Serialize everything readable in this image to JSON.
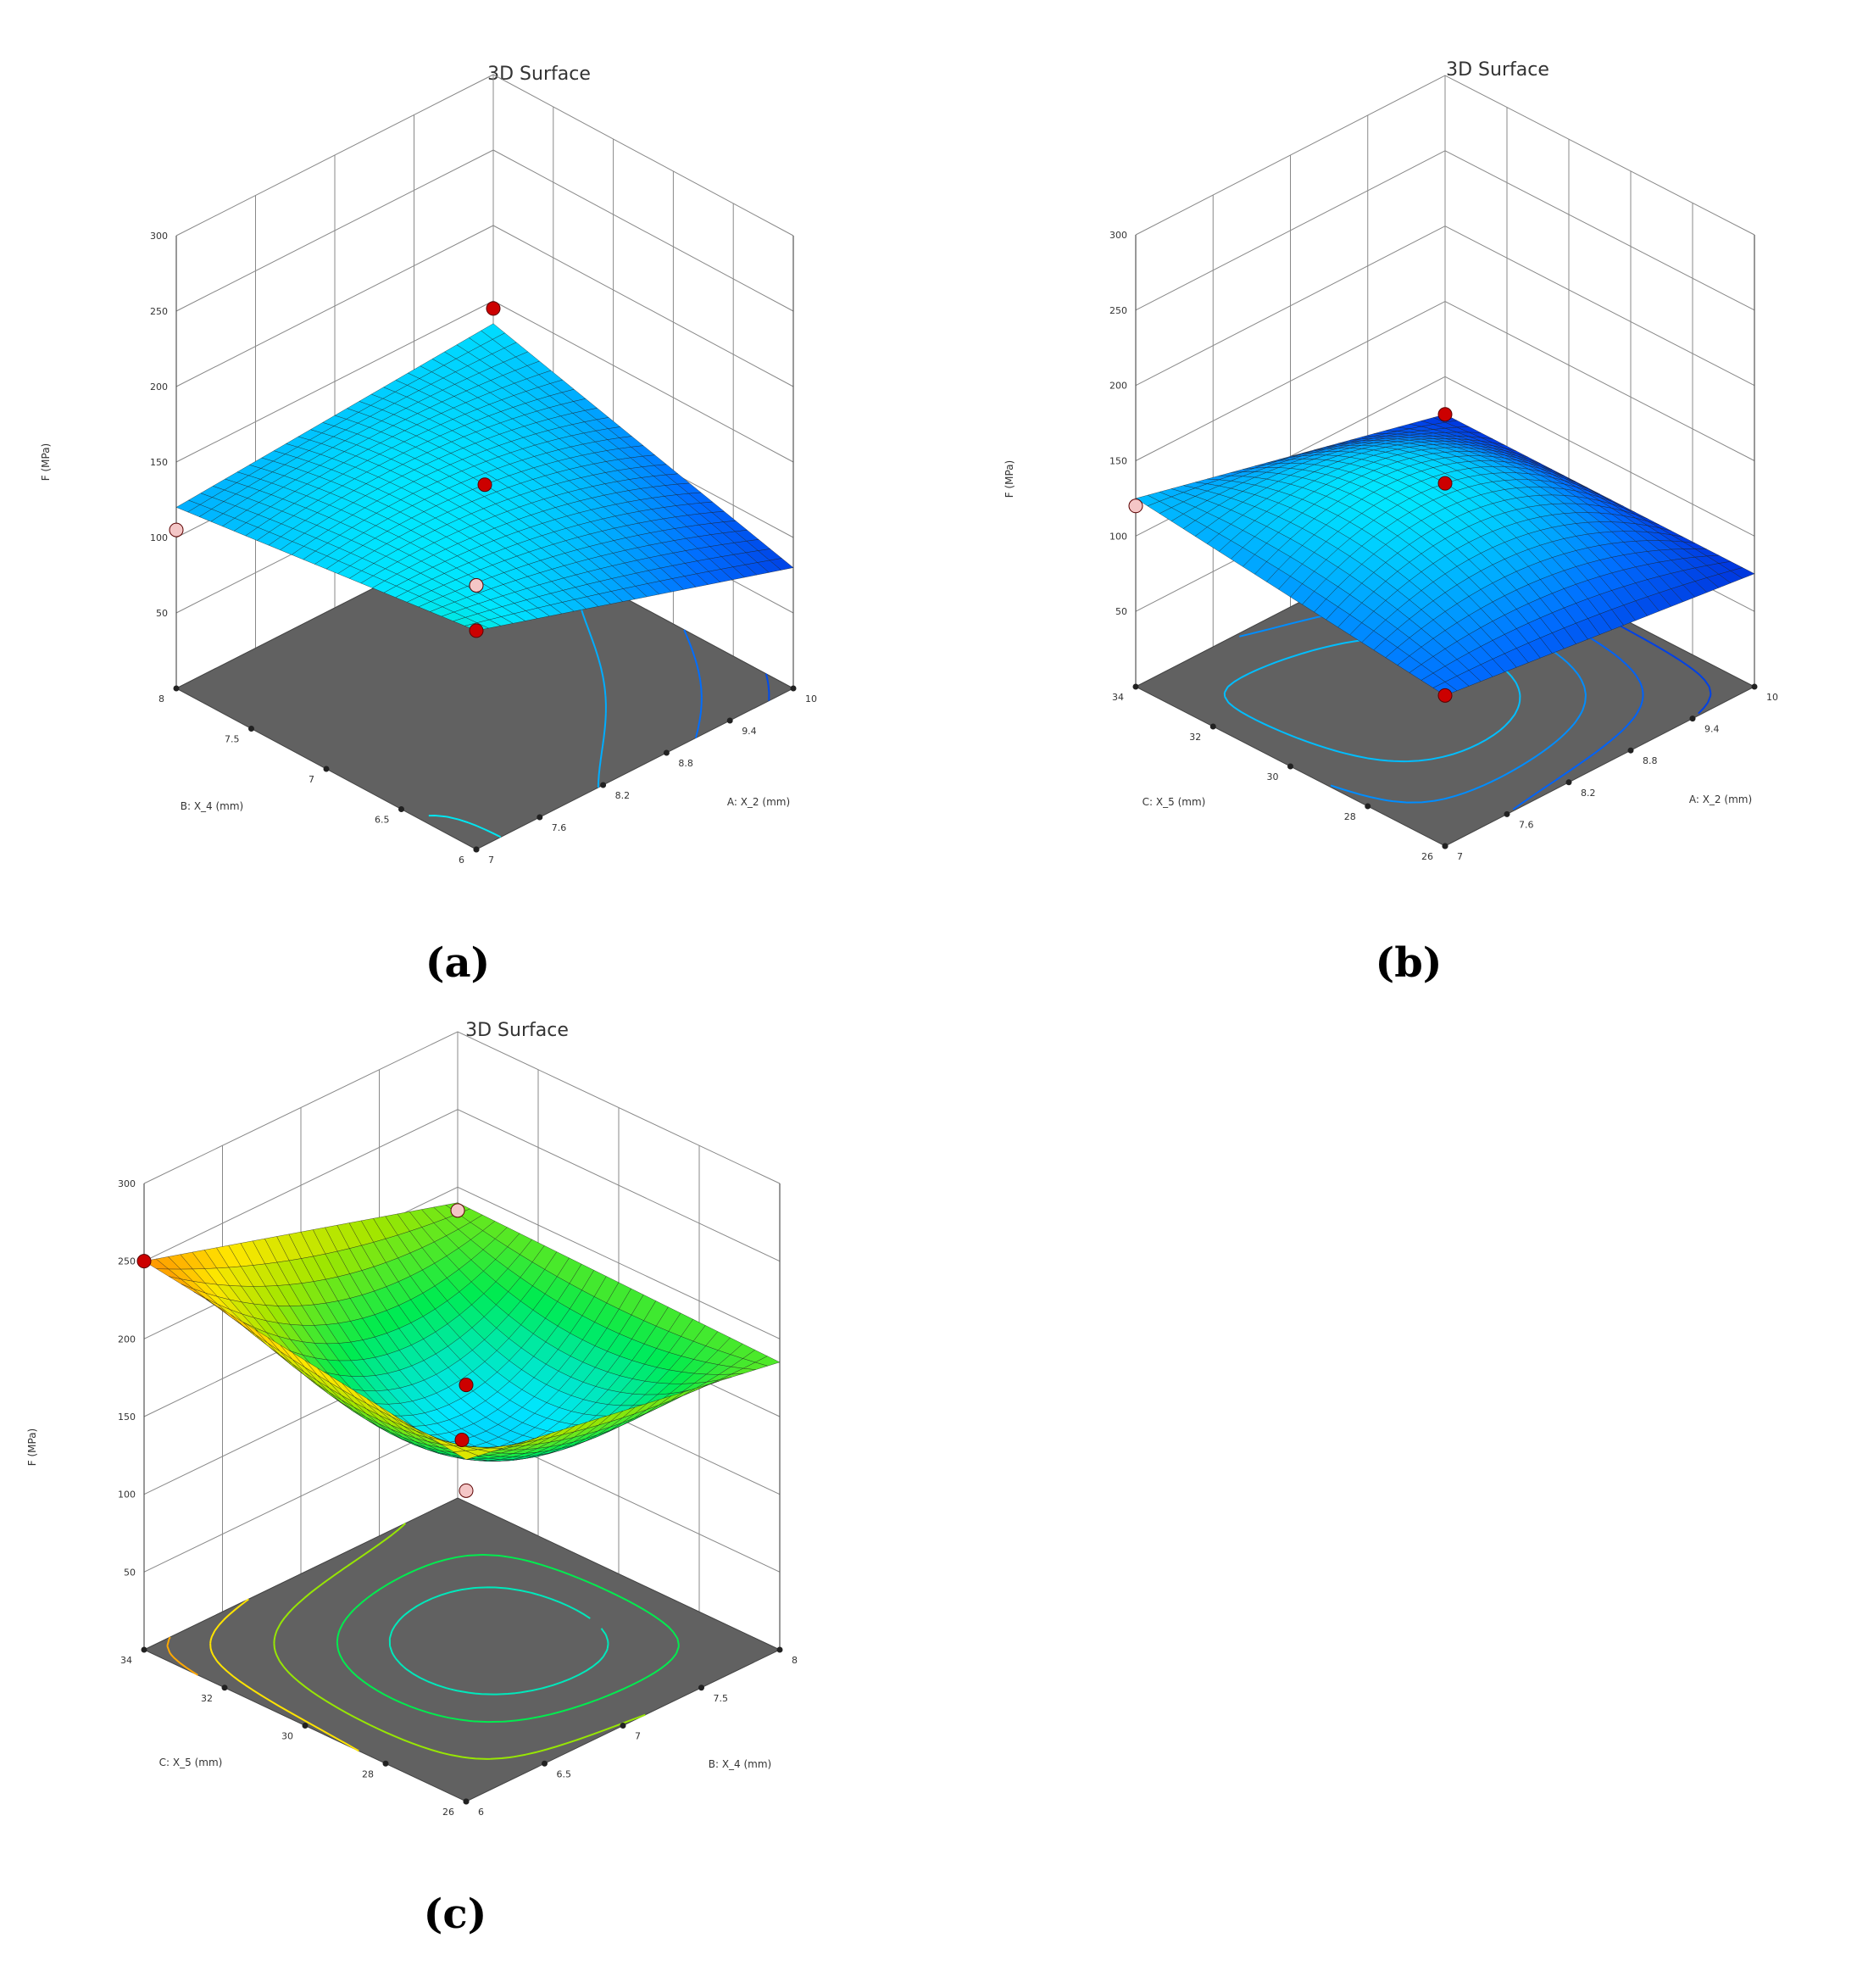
{
  "captions": [
    "(a)",
    "(b)",
    "(c)"
  ],
  "chart_data": [
    {
      "type": "surface3d",
      "title": "3D Surface",
      "zlabel": "F (MPa)",
      "xlabel": "A: X_2 (mm)",
      "ylabel": "B: X_4 (mm)",
      "xrange": [
        7,
        10
      ],
      "yrange": [
        6,
        8
      ],
      "zrange": [
        0,
        300
      ],
      "xticks": [
        "7",
        "7.6",
        "8.2",
        "8.8",
        "9.4",
        "10"
      ],
      "yticks": [
        "6",
        "6.5",
        "7",
        "7.5",
        "8"
      ],
      "zticks": [
        "50",
        "100",
        "150",
        "200",
        "250",
        "300"
      ],
      "surface_corners": {
        "x_min_y_min": 145,
        "x_max_y_min": 80,
        "x_min_y_max": 120,
        "x_max_y_max": 135
      },
      "center_value": 135,
      "design_points": [
        {
          "x": 10,
          "y": 8,
          "z": 145,
          "kind": "above"
        },
        {
          "x": 7,
          "y": 8,
          "z": 105,
          "kind": "below"
        },
        {
          "x": 8.5,
          "y": 7,
          "z": 135,
          "kind": "above"
        },
        {
          "x": 7,
          "y": 6,
          "z": 175,
          "kind": "below"
        },
        {
          "x": 7,
          "y": 6,
          "z": 145,
          "kind": "above"
        }
      ],
      "contours": [
        85,
        100,
        120,
        140
      ]
    },
    {
      "type": "surface3d",
      "title": "3D Surface",
      "zlabel": "F (MPa)",
      "xlabel": "A: X_2 (mm)",
      "ylabel": "C: X_5 (mm)",
      "xrange": [
        7,
        10
      ],
      "yrange": [
        26,
        34
      ],
      "zrange": [
        0,
        300
      ],
      "xticks": [
        "7",
        "7.6",
        "8.2",
        "8.8",
        "9.4",
        "10"
      ],
      "yticks": [
        "26",
        "28",
        "30",
        "32",
        "34"
      ],
      "zticks": [
        "50",
        "100",
        "150",
        "200",
        "250",
        "300"
      ],
      "surface_corners": {
        "x_min_y_min": 100,
        "x_max_y_min": 75,
        "x_min_y_max": 125,
        "x_max_y_max": 75
      },
      "center_value": 135,
      "design_points": [
        {
          "x": 10,
          "y": 34,
          "z": 75,
          "kind": "above"
        },
        {
          "x": 7,
          "y": 34,
          "z": 120,
          "kind": "below"
        },
        {
          "x": 8.5,
          "y": 30,
          "z": 135,
          "kind": "above"
        },
        {
          "x": 7,
          "y": 26,
          "z": 100,
          "kind": "above"
        }
      ],
      "contours": [
        80,
        95,
        110,
        125
      ]
    },
    {
      "type": "surface3d",
      "title": "3D Surface",
      "zlabel": "F (MPa)",
      "xlabel": "B: X_4 (mm)",
      "ylabel": "C: X_5 (mm)",
      "xrange": [
        6,
        8
      ],
      "yrange": [
        26,
        34
      ],
      "zrange": [
        0,
        300
      ],
      "xticks": [
        "6",
        "6.5",
        "7",
        "7.5",
        "8"
      ],
      "yticks": [
        "26",
        "28",
        "30",
        "32",
        "34"
      ],
      "zticks": [
        "50",
        "100",
        "150",
        "200",
        "250",
        "300"
      ],
      "surface_corners": {
        "x_min_y_min": 220,
        "x_max_y_min": 185,
        "x_min_y_max": 250,
        "x_max_y_max": 190
      },
      "center_value": 135,
      "design_points": [
        {
          "x": 6,
          "y": 34,
          "z": 250,
          "kind": "above"
        },
        {
          "x": 8,
          "y": 34,
          "z": 185,
          "kind": "below"
        },
        {
          "x": 7,
          "y": 30,
          "z": 135,
          "kind": "above"
        },
        {
          "x": 6,
          "y": 26,
          "z": 268,
          "kind": "above"
        },
        {
          "x": 6,
          "y": 26,
          "z": 200,
          "kind": "below"
        }
      ],
      "contours": [
        150,
        170,
        200,
        230,
        245
      ]
    }
  ]
}
